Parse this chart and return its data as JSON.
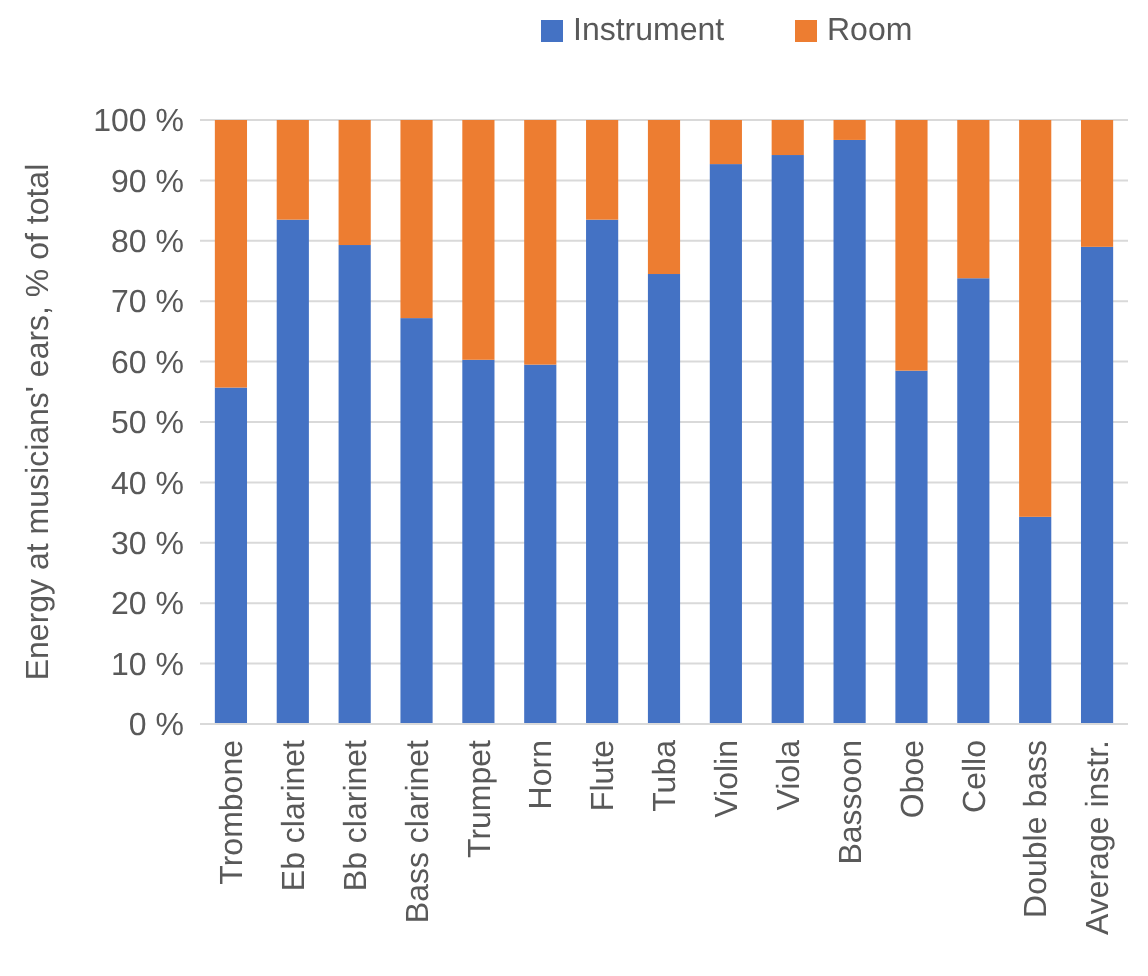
{
  "chart_data": {
    "type": "bar",
    "stacked": true,
    "ylabel": "Energy at musicians' ears, % of total",
    "categories": [
      "Trombone",
      "Eb clarinet",
      "Bb clarinet",
      "Bass clarinet",
      "Trumpet",
      "Horn",
      "Flute",
      "Tuba",
      "Violin",
      "Viola",
      "Bassoon",
      "Oboe",
      "Cello",
      "Double bass",
      "Average instr."
    ],
    "series": [
      {
        "name": "Instrument",
        "color": "#4472c4",
        "values": [
          55.7,
          83.5,
          79.3,
          67.2,
          60.3,
          59.5,
          83.5,
          74.5,
          92.7,
          94.2,
          96.7,
          58.5,
          73.8,
          34.3,
          79.0
        ]
      },
      {
        "name": "Room",
        "color": "#ed7d31",
        "values": [
          44.3,
          16.5,
          20.7,
          32.8,
          39.7,
          40.5,
          16.5,
          25.5,
          7.3,
          5.8,
          3.3,
          41.5,
          26.2,
          65.7,
          21.0
        ]
      }
    ],
    "ylim": [
      0,
      100
    ],
    "yticks": [
      {
        "value": 0,
        "label": "0 %"
      },
      {
        "value": 10,
        "label": "10 %"
      },
      {
        "value": 20,
        "label": "20 %"
      },
      {
        "value": 30,
        "label": "30 %"
      },
      {
        "value": 40,
        "label": "40 %"
      },
      {
        "value": 50,
        "label": "50 %"
      },
      {
        "value": 60,
        "label": "60 %"
      },
      {
        "value": 70,
        "label": "70 %"
      },
      {
        "value": 80,
        "label": "80 %"
      },
      {
        "value": 90,
        "label": "90 %"
      },
      {
        "value": 100,
        "label": "100 %"
      }
    ],
    "grid": "y",
    "legend": "top"
  }
}
